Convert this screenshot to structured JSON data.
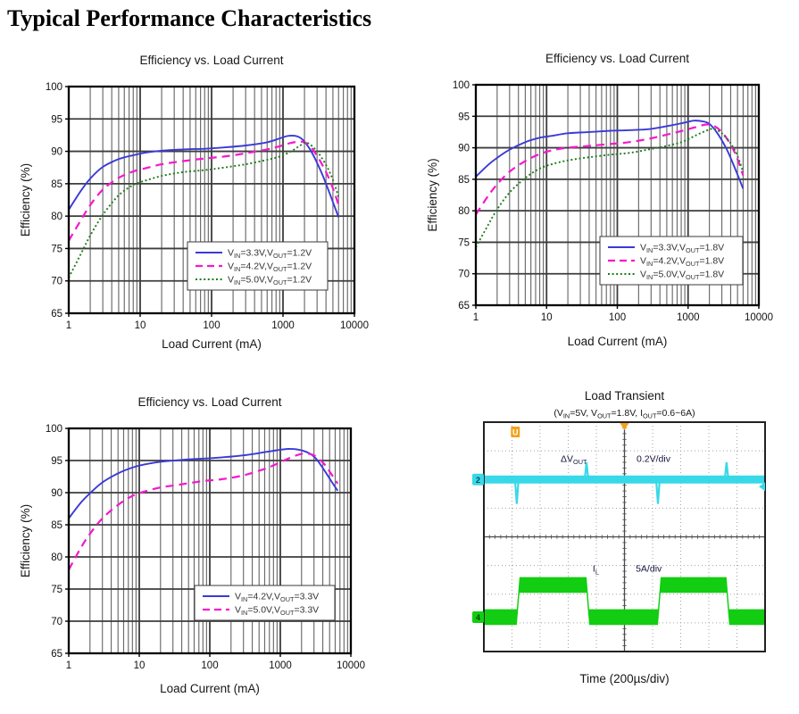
{
  "page_title": "Typical Performance Characteristics",
  "chart_data": [
    {
      "type": "line",
      "title": "Efficiency vs. Load Current",
      "xlabel": "Load Current (mA)",
      "ylabel": "Efficiency (%)",
      "x_scale": "log",
      "xlim": [
        1,
        10000
      ],
      "ylim": [
        65,
        100
      ],
      "x_ticks": [
        "1",
        "10",
        "100",
        "1000",
        "10000"
      ],
      "y_ticks": [
        100,
        95,
        90,
        85,
        80,
        75,
        70,
        65
      ],
      "grid": true,
      "legend_position": "lower-right",
      "series": [
        {
          "name": "V_{IN}=3.3V,V_{OUT}=1.2V",
          "color": "#3a3ad8",
          "line": "solid",
          "points": [
            [
              1,
              81.0
            ],
            [
              1.5,
              84.0
            ],
            [
              2,
              85.8
            ],
            [
              3,
              87.6
            ],
            [
              5,
              88.8
            ],
            [
              8,
              89.4
            ],
            [
              12,
              89.8
            ],
            [
              20,
              90.1
            ],
            [
              40,
              90.3
            ],
            [
              80,
              90.4
            ],
            [
              150,
              90.6
            ],
            [
              300,
              90.9
            ],
            [
              600,
              91.4
            ],
            [
              900,
              92.0
            ],
            [
              1200,
              92.4
            ],
            [
              1600,
              92.3
            ],
            [
              2000,
              91.5
            ],
            [
              2600,
              89.6
            ],
            [
              3500,
              86.6
            ],
            [
              4500,
              83.5
            ],
            [
              6000,
              79.8
            ]
          ]
        },
        {
          "name": "V_{IN}=4.2V,V_{OUT}=1.2V",
          "color": "#f518cc",
          "line": "dashed",
          "points": [
            [
              1,
              76.2
            ],
            [
              1.5,
              79.5
            ],
            [
              2,
              81.7
            ],
            [
              3,
              84.1
            ],
            [
              5,
              85.9
            ],
            [
              8,
              86.9
            ],
            [
              12,
              87.4
            ],
            [
              20,
              88.0
            ],
            [
              40,
              88.5
            ],
            [
              80,
              88.9
            ],
            [
              150,
              89.2
            ],
            [
              300,
              89.7
            ],
            [
              600,
              90.3
            ],
            [
              900,
              90.8
            ],
            [
              1300,
              91.3
            ],
            [
              1800,
              91.5
            ],
            [
              2300,
              91.0
            ],
            [
              3000,
              89.3
            ],
            [
              4000,
              86.8
            ],
            [
              5000,
              84.3
            ],
            [
              6000,
              81.7
            ]
          ]
        },
        {
          "name": "V_{IN}=5.0V,V_{OUT}=1.2V",
          "color": "#1e7d1e",
          "line": "dotted",
          "points": [
            [
              1,
              70.5
            ],
            [
              1.5,
              74.3
            ],
            [
              2,
              77.0
            ],
            [
              3,
              80.2
            ],
            [
              5,
              83.2
            ],
            [
              8,
              84.8
            ],
            [
              12,
              85.5
            ],
            [
              20,
              86.2
            ],
            [
              40,
              86.8
            ],
            [
              80,
              87.1
            ],
            [
              150,
              87.5
            ],
            [
              300,
              88.0
            ],
            [
              600,
              88.7
            ],
            [
              900,
              89.2
            ],
            [
              1300,
              90.0
            ],
            [
              1800,
              91.0
            ],
            [
              2200,
              91.3
            ],
            [
              3000,
              90.0
            ],
            [
              4000,
              87.9
            ],
            [
              5000,
              85.6
            ],
            [
              6000,
              82.9
            ]
          ]
        }
      ]
    },
    {
      "type": "line",
      "title": "Efficiency vs. Load Current",
      "xlabel": "Load Current (mA)",
      "ylabel": "Efficiency (%)",
      "x_scale": "log",
      "xlim": [
        1,
        10000
      ],
      "ylim": [
        65,
        100
      ],
      "x_ticks": [
        "1",
        "10",
        "100",
        "1000",
        "10000"
      ],
      "y_ticks": [
        100,
        95,
        90,
        85,
        80,
        75,
        70,
        65
      ],
      "grid": true,
      "legend_position": "lower-right",
      "series": [
        {
          "name": "V_{IN}=3.3V,V_{OUT}=1.8V",
          "color": "#3a3ad8",
          "line": "solid",
          "points": [
            [
              1,
              85.4
            ],
            [
              1.5,
              87.3
            ],
            [
              2,
              88.4
            ],
            [
              3,
              89.7
            ],
            [
              5,
              90.9
            ],
            [
              8,
              91.6
            ],
            [
              12,
              91.9
            ],
            [
              20,
              92.3
            ],
            [
              40,
              92.5
            ],
            [
              80,
              92.7
            ],
            [
              150,
              92.8
            ],
            [
              300,
              93.0
            ],
            [
              600,
              93.6
            ],
            [
              900,
              94.0
            ],
            [
              1200,
              94.3
            ],
            [
              1600,
              94.2
            ],
            [
              2000,
              93.8
            ],
            [
              2600,
              92.3
            ],
            [
              3500,
              89.8
            ],
            [
              4500,
              87.0
            ],
            [
              6000,
              83.5
            ]
          ]
        },
        {
          "name": "V_{IN}=4.2V,V_{OUT}=1.8V",
          "color": "#f518cc",
          "line": "dashed",
          "points": [
            [
              1,
              79.4
            ],
            [
              1.5,
              82.4
            ],
            [
              2,
              84.2
            ],
            [
              3,
              86.2
            ],
            [
              5,
              87.9
            ],
            [
              8,
              89.0
            ],
            [
              12,
              89.6
            ],
            [
              20,
              90.0
            ],
            [
              40,
              90.3
            ],
            [
              80,
              90.6
            ],
            [
              150,
              90.9
            ],
            [
              300,
              91.5
            ],
            [
              600,
              92.3
            ],
            [
              900,
              92.8
            ],
            [
              1300,
              93.3
            ],
            [
              1800,
              93.7
            ],
            [
              2300,
              93.5
            ],
            [
              3000,
              92.5
            ],
            [
              4000,
              90.5
            ],
            [
              5000,
              88.2
            ],
            [
              6000,
              85.6
            ]
          ]
        },
        {
          "name": "V_{IN}=5.0V,V_{OUT}=1.8V",
          "color": "#1e7d1e",
          "line": "dotted",
          "points": [
            [
              1,
              74.2
            ],
            [
              1.5,
              77.8
            ],
            [
              2,
              80.2
            ],
            [
              3,
              82.9
            ],
            [
              5,
              85.2
            ],
            [
              8,
              86.7
            ],
            [
              12,
              87.4
            ],
            [
              20,
              88.0
            ],
            [
              40,
              88.5
            ],
            [
              80,
              88.9
            ],
            [
              150,
              89.2
            ],
            [
              300,
              89.8
            ],
            [
              600,
              90.5
            ],
            [
              900,
              91.1
            ],
            [
              1300,
              92.0
            ],
            [
              1800,
              92.7
            ],
            [
              2300,
              93.0
            ],
            [
              3000,
              92.3
            ],
            [
              4000,
              90.7
            ],
            [
              5000,
              88.7
            ],
            [
              6000,
              86.1
            ]
          ]
        }
      ]
    },
    {
      "type": "line",
      "title": "Efficiency vs. Load Current",
      "xlabel": "Load Current (mA)",
      "ylabel": "Efficiency (%)",
      "x_scale": "log",
      "xlim": [
        1,
        10000
      ],
      "ylim": [
        65,
        100
      ],
      "x_ticks": [
        "1",
        "10",
        "100",
        "1000",
        "10000"
      ],
      "y_ticks": [
        100,
        95,
        90,
        85,
        80,
        75,
        70,
        65
      ],
      "grid": true,
      "legend_position": "lower-right",
      "series": [
        {
          "name": "V_{IN}=4.2V,V_{OUT}=3.3V",
          "color": "#3a3ad8",
          "line": "solid",
          "points": [
            [
              1,
              86.0
            ],
            [
              1.5,
              88.5
            ],
            [
              2,
              89.9
            ],
            [
              3,
              91.6
            ],
            [
              5,
              93.0
            ],
            [
              8,
              93.9
            ],
            [
              12,
              94.4
            ],
            [
              20,
              94.8
            ],
            [
              40,
              95.1
            ],
            [
              80,
              95.3
            ],
            [
              150,
              95.5
            ],
            [
              300,
              95.8
            ],
            [
              600,
              96.3
            ],
            [
              900,
              96.6
            ],
            [
              1300,
              96.8
            ],
            [
              1800,
              96.7
            ],
            [
              2500,
              96.2
            ],
            [
              3200,
              95.3
            ],
            [
              4200,
              93.5
            ],
            [
              5000,
              92.2
            ],
            [
              6500,
              90.3
            ]
          ]
        },
        {
          "name": "V_{IN}=5.0V,V_{OUT}=3.3V",
          "color": "#f518cc",
          "line": "dashed",
          "points": [
            [
              1,
              78.0
            ],
            [
              1.5,
              81.5
            ],
            [
              2,
              83.6
            ],
            [
              3,
              86.0
            ],
            [
              5,
              88.1
            ],
            [
              8,
              89.5
            ],
            [
              12,
              90.2
            ],
            [
              20,
              90.8
            ],
            [
              40,
              91.3
            ],
            [
              80,
              91.8
            ],
            [
              150,
              92.1
            ],
            [
              300,
              92.7
            ],
            [
              600,
              93.7
            ],
            [
              900,
              94.5
            ],
            [
              1300,
              95.3
            ],
            [
              1800,
              95.9
            ],
            [
              2300,
              96.1
            ],
            [
              3000,
              95.8
            ],
            [
              4000,
              94.7
            ],
            [
              5000,
              93.3
            ],
            [
              6500,
              91.4
            ]
          ]
        }
      ]
    },
    {
      "type": "oscilloscope",
      "title": "Load Transient",
      "subtitle": "(V_{IN}=5V, V_{OUT}=1.8V, I_{OUT}=0.6~6A)",
      "xlabel": "Time (200µs/div)",
      "x_divisions": 10,
      "y_divisions": 8,
      "traces": [
        {
          "name": "ΔV_{OUT}",
          "scale": "0.2V/div",
          "channel": "2",
          "color": "#38d8e8",
          "baseline_div": 2.0,
          "band_div": 0.28,
          "spikes": [
            {
              "x_div": 1.17,
              "dir": "down",
              "size_div": 0.85
            },
            {
              "x_div": 3.65,
              "dir": "up",
              "size_div": 0.6
            },
            {
              "x_div": 6.19,
              "dir": "down",
              "size_div": 0.85
            },
            {
              "x_div": 8.63,
              "dir": "up",
              "size_div": 0.6
            }
          ]
        },
        {
          "name": "I_{L}",
          "scale": "5A/div",
          "channel": "4",
          "color": "#12cd12",
          "low_div": 6.8,
          "high_div": 5.68,
          "band_div": 0.55,
          "edges_x_div": [
            1.17,
            3.65,
            6.19,
            8.63
          ],
          "start_level": "low"
        }
      ],
      "markers": {
        "trigger_top_div": 5.0,
        "u_marker_x_div": 1.12,
        "right_level_div": 2.25
      }
    }
  ]
}
